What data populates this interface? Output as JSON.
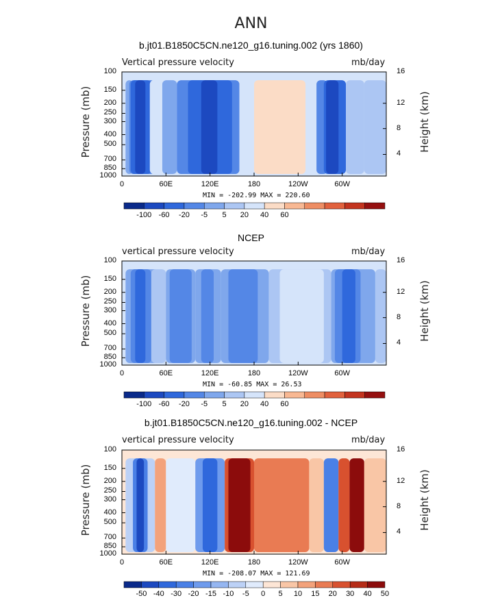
{
  "title": "ANN",
  "colors": {
    "scale12": [
      "#0a2a8a",
      "#1c49c0",
      "#2f68dc",
      "#5487e6",
      "#7fa7ec",
      "#acc6f3",
      "#d5e4fa",
      "#fbdcc6",
      "#f8b893",
      "#ee8d63",
      "#e1613d",
      "#c3341f",
      "#951010"
    ],
    "scale14": [
      "#0a2a8a",
      "#1c49c0",
      "#2f68dc",
      "#4a80e6",
      "#6e9bed",
      "#95b6f1",
      "#bcd1f6",
      "#e0ebfc",
      "#fde6d6",
      "#f9c6a6",
      "#f3a27b",
      "#e97b53",
      "#d8512f",
      "#b52c17",
      "#8c0c0c"
    ]
  },
  "chart_data": [
    {
      "type": "heatmap",
      "panel_title": "b.jt01.B1850C5CN.ne120_g16.tuning.002 (yrs 1860)",
      "left_label": "Vertical pressure velocity",
      "right_label": "mb/day",
      "ylabel": "Pressure (mb)",
      "ylabel_right": "Height (km)",
      "yticks": [
        "100",
        "150",
        "200",
        "250",
        "300",
        "400",
        "500",
        "700",
        "850",
        "1000"
      ],
      "yticks_right": [
        "16",
        "12",
        "8",
        "4"
      ],
      "xticks": [
        "0",
        "60E",
        "120E",
        "180",
        "120W",
        "60W"
      ],
      "minmax": "MIN = -202.99  MAX = 220.60",
      "colorbar_labels": [
        "-100",
        "-60",
        "-20",
        "-5",
        "5",
        "20",
        "40",
        "60"
      ],
      "xlim": [
        0,
        360
      ],
      "ylim": [
        1000,
        100
      ],
      "cells": [
        {
          "lon": [
            5,
            15
          ],
          "val": -5
        },
        {
          "lon": [
            10,
            45
          ],
          "val": -20
        },
        {
          "lon": [
            12,
            40
          ],
          "val": -60
        },
        {
          "lon": [
            18,
            32
          ],
          "val": -100
        },
        {
          "lon": [
            38,
            55
          ],
          "val": 20
        },
        {
          "lon": [
            55,
            75
          ],
          "val": -5
        },
        {
          "lon": [
            75,
            160
          ],
          "val": -20
        },
        {
          "lon": [
            90,
            150
          ],
          "val": -60
        },
        {
          "lon": [
            108,
            130
          ],
          "val": -100
        },
        {
          "lon": [
            160,
            265
          ],
          "val": 20
        },
        {
          "lon": [
            180,
            250
          ],
          "val": 40
        },
        {
          "lon": [
            265,
            280
          ],
          "val": -20
        },
        {
          "lon": [
            275,
            305
          ],
          "val": -60
        },
        {
          "lon": [
            278,
            295
          ],
          "val": -100
        },
        {
          "lon": [
            305,
            330
          ],
          "val": 5
        },
        {
          "lon": [
            330,
            360
          ],
          "val": 5
        }
      ]
    },
    {
      "type": "heatmap",
      "panel_title": "NCEP",
      "left_label": "vertical pressure velocity",
      "right_label": "mb/day",
      "ylabel": "Pressure (mb)",
      "ylabel_right": "Height (km)",
      "yticks": [
        "100",
        "150",
        "200",
        "250",
        "300",
        "400",
        "500",
        "700",
        "850",
        "1000"
      ],
      "yticks_right": [
        "16",
        "12",
        "8",
        "4"
      ],
      "xticks": [
        "0",
        "60E",
        "120E",
        "180",
        "120W",
        "60W"
      ],
      "minmax": "MIN = -60.85  MAX = 26.53",
      "colorbar_labels": [
        "-100",
        "-60",
        "-20",
        "-5",
        "5",
        "20",
        "40",
        "60"
      ],
      "xlim": [
        0,
        360
      ],
      "ylim": [
        1000,
        100
      ],
      "cells": [
        {
          "lon": [
            5,
            50
          ],
          "val": -5
        },
        {
          "lon": [
            12,
            40
          ],
          "val": -20
        },
        {
          "lon": [
            18,
            32
          ],
          "val": -60
        },
        {
          "lon": [
            40,
            60
          ],
          "val": 5
        },
        {
          "lon": [
            60,
            100
          ],
          "val": -5
        },
        {
          "lon": [
            65,
            95
          ],
          "val": -20
        },
        {
          "lon": [
            100,
            135
          ],
          "val": -5
        },
        {
          "lon": [
            108,
            125
          ],
          "val": -20
        },
        {
          "lon": [
            135,
            200
          ],
          "val": -5
        },
        {
          "lon": [
            145,
            185
          ],
          "val": -20
        },
        {
          "lon": [
            200,
            285
          ],
          "val": 5
        },
        {
          "lon": [
            215,
            275
          ],
          "val": 20
        },
        {
          "lon": [
            285,
            345
          ],
          "val": -5
        },
        {
          "lon": [
            290,
            325
          ],
          "val": -20
        },
        {
          "lon": [
            300,
            318
          ],
          "val": -60
        },
        {
          "lon": [
            345,
            360
          ],
          "val": 5
        }
      ]
    },
    {
      "type": "heatmap",
      "panel_title": "b.jt01.B1850C5CN.ne120_g16.tuning.002 - NCEP",
      "left_label": "vertical pressure velocity",
      "right_label": "mb/day",
      "ylabel": "Pressure (mb)",
      "ylabel_right": "Height (km)",
      "yticks": [
        "100",
        "150",
        "200",
        "250",
        "300",
        "400",
        "500",
        "700",
        "850",
        "1000"
      ],
      "yticks_right": [
        "16",
        "12",
        "8",
        "4"
      ],
      "xticks": [
        "0",
        "60E",
        "120E",
        "180",
        "120W",
        "60W"
      ],
      "minmax": "MIN = -208.07  MAX = 121.69",
      "colorbar_labels": [
        "-50",
        "-40",
        "-30",
        "-20",
        "-15",
        "-10",
        "-5",
        "0",
        "5",
        "10",
        "15",
        "20",
        "30",
        "40",
        "50"
      ],
      "xlim": [
        0,
        360
      ],
      "ylim": [
        1000,
        100
      ],
      "cells": [
        {
          "lon": [
            5,
            45
          ],
          "val": -10
        },
        {
          "lon": [
            15,
            35
          ],
          "val": -30
        },
        {
          "lon": [
            20,
            30
          ],
          "val": -50
        },
        {
          "lon": [
            45,
            60
          ],
          "val": 10
        },
        {
          "lon": [
            60,
            100
          ],
          "val": -5
        },
        {
          "lon": [
            100,
            140
          ],
          "val": -20
        },
        {
          "lon": [
            110,
            130
          ],
          "val": -40
        },
        {
          "lon": [
            140,
            180
          ],
          "val": 20
        },
        {
          "lon": [
            145,
            175
          ],
          "val": 40
        },
        {
          "lon": [
            180,
            255
          ],
          "val": 15
        },
        {
          "lon": [
            255,
            275
          ],
          "val": 5
        },
        {
          "lon": [
            275,
            295
          ],
          "val": -30
        },
        {
          "lon": [
            295,
            310
          ],
          "val": 20
        },
        {
          "lon": [
            310,
            330
          ],
          "val": 40
        },
        {
          "lon": [
            330,
            360
          ],
          "val": 5
        }
      ]
    }
  ]
}
